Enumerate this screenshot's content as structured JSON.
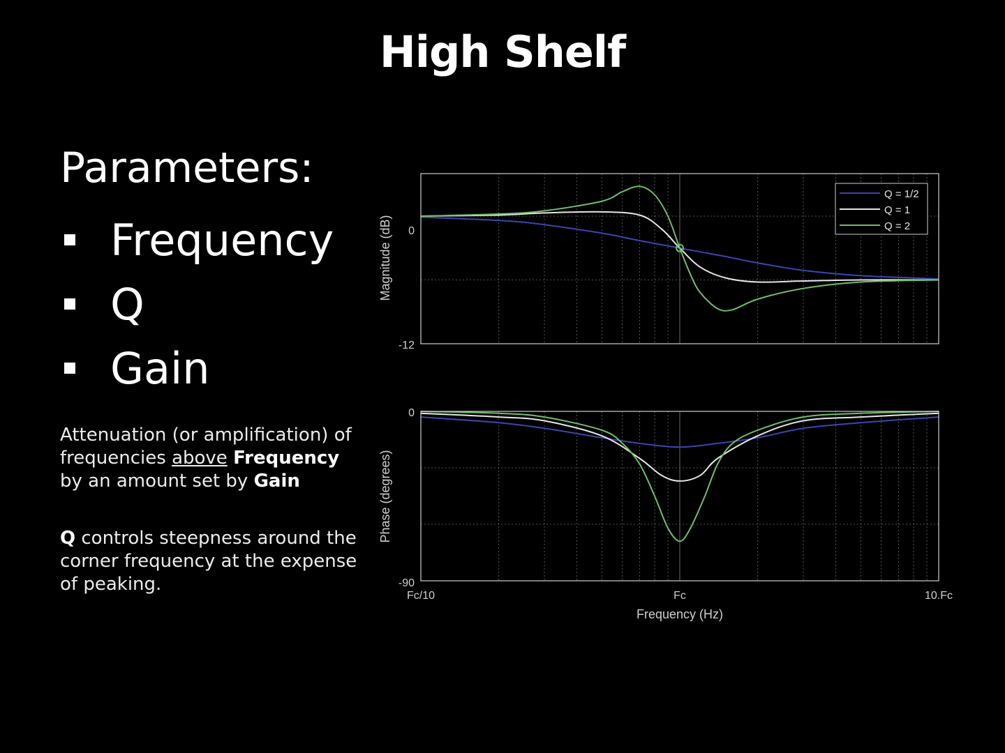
{
  "slide": {
    "title": "High Shelf",
    "params_heading": "Parameters:",
    "params": [
      "Frequency",
      "Q",
      "Gain"
    ],
    "desc1": {
      "t1": "Attenuation (or amplification) of frequencies ",
      "underline": "above",
      "t2": " ",
      "bold1": "Frequency",
      "t3": " by an amount set by ",
      "bold2": "Gain"
    },
    "desc2": {
      "bold": "Q",
      "text": " controls steepness around the corner frequency at the expense of peaking."
    }
  },
  "colors": {
    "q_half": "#3b45b0",
    "q_one": "#e6e6e6",
    "q_two": "#6fbf6a",
    "grid": "#6a6a6a",
    "axes": "#cfcfcf"
  },
  "chart_data": [
    {
      "type": "line",
      "ylabel": "Magnitude (dB)",
      "x_scale": "log",
      "xlim": [
        0.1,
        10
      ],
      "ylim": [
        -12,
        4
      ],
      "yticks": [
        0,
        -12
      ],
      "ytick_labels": [
        "0",
        "-12"
      ],
      "legend": {
        "position": "top-right",
        "entries": [
          "Q = 1/2",
          "Q = 1",
          "Q = 2"
        ]
      },
      "marker": {
        "x": 1,
        "y": -3,
        "label": ""
      },
      "series": [
        {
          "name": "Q = 1/2",
          "x": [
            0.1,
            0.2,
            0.3,
            0.5,
            0.7,
            1,
            1.5,
            2,
            3,
            5,
            10
          ],
          "values": [
            -0.1,
            -0.4,
            -0.8,
            -1.6,
            -2.3,
            -3.0,
            -3.8,
            -4.4,
            -5.1,
            -5.6,
            -5.9
          ]
        },
        {
          "name": "Q = 1",
          "x": [
            0.1,
            0.2,
            0.3,
            0.5,
            0.7,
            0.85,
            1,
            1.2,
            1.5,
            2,
            3,
            5,
            10
          ],
          "values": [
            0.0,
            0.1,
            0.3,
            0.4,
            0.1,
            -1.2,
            -3.0,
            -4.8,
            -5.8,
            -6.2,
            -6.1,
            -6.0,
            -6.0
          ]
        },
        {
          "name": "Q = 2",
          "x": [
            0.1,
            0.2,
            0.3,
            0.5,
            0.6,
            0.7,
            0.8,
            0.9,
            1,
            1.1,
            1.2,
            1.4,
            1.6,
            2,
            3,
            5,
            10
          ],
          "values": [
            0.0,
            0.2,
            0.5,
            1.4,
            2.3,
            2.8,
            2.0,
            0.0,
            -3.0,
            -5.5,
            -7.2,
            -8.7,
            -8.8,
            -7.8,
            -6.8,
            -6.2,
            -6.0
          ]
        }
      ]
    },
    {
      "type": "line",
      "xlabel": "Frequency (Hz)",
      "ylabel": "Phase (degrees)",
      "x_scale": "log",
      "xlim": [
        0.1,
        10
      ],
      "ylim": [
        -90,
        0
      ],
      "xtick_labels": [
        "Fc/10",
        "Fc",
        "10.Fc"
      ],
      "yticks": [
        0,
        -90
      ],
      "ytick_labels": [
        "0",
        "-90"
      ],
      "series": [
        {
          "name": "Q = 1/2",
          "x": [
            0.1,
            0.2,
            0.3,
            0.5,
            0.7,
            1,
            1.4,
            2,
            3,
            5,
            10
          ],
          "values": [
            -3,
            -6,
            -9,
            -14,
            -17,
            -19,
            -17,
            -14,
            -9,
            -6,
            -3
          ]
        },
        {
          "name": "Q = 1",
          "x": [
            0.1,
            0.2,
            0.3,
            0.5,
            0.7,
            0.85,
            1,
            1.2,
            1.4,
            2,
            3,
            5,
            10
          ],
          "values": [
            -1,
            -3,
            -5,
            -13,
            -25,
            -34,
            -37,
            -34,
            -25,
            -13,
            -5,
            -3,
            -1
          ]
        },
        {
          "name": "Q = 2",
          "x": [
            0.1,
            0.2,
            0.3,
            0.5,
            0.6,
            0.7,
            0.8,
            0.9,
            1,
            1.1,
            1.25,
            1.4,
            1.6,
            2,
            3,
            5,
            10
          ],
          "values": [
            0,
            -1,
            -3,
            -10,
            -17,
            -28,
            -45,
            -62,
            -69,
            -62,
            -45,
            -28,
            -17,
            -10,
            -3,
            -1,
            0
          ]
        }
      ]
    }
  ]
}
